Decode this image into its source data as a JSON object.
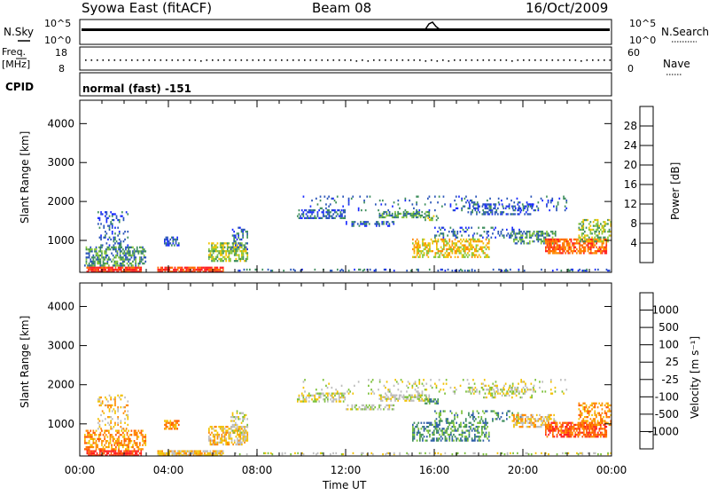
{
  "header": {
    "station": "Syowa East (fitACF)",
    "beam": "Beam 08",
    "date": "16/Oct/2009"
  },
  "noise_panel": {
    "left_label": "N.Sky",
    "right_label": "N.Search",
    "left_ticks": [
      "10^5",
      "10^0"
    ],
    "right_ticks": [
      "10^5",
      "10^0"
    ]
  },
  "freq_panel": {
    "left_label_1": "Freq.",
    "left_label_2": "[MHz]",
    "right_label": "Nave",
    "left_ticks": [
      "18",
      "8"
    ],
    "right_ticks": [
      "60",
      "0"
    ]
  },
  "cpid_panel": {
    "label": "CPID",
    "value": "normal (fast) -151"
  },
  "chart_data": [
    {
      "type": "heatmap",
      "name": "Power",
      "ylabel": "Slant Range [km]",
      "xlabel": "Time UT",
      "ylim": [
        180,
        4600
      ],
      "xlim_hours": [
        0,
        24
      ],
      "y_ticks": [
        "1000",
        "2000",
        "3000",
        "4000"
      ],
      "x_ticks": [
        "00:00",
        "04:00",
        "08:00",
        "12:00",
        "16:00",
        "20:00",
        "00:00"
      ],
      "colorbar_label": "Power [dB]",
      "colorbar_ticks": [
        "4",
        "8",
        "12",
        "16",
        "20",
        "24",
        "28"
      ],
      "colors": [
        "#1a2bff",
        "#2a55b8",
        "#3f8f5e",
        "#86c63a",
        "#f2c200",
        "#ff8a00",
        "#ff6a00",
        "#ff2020"
      ]
    },
    {
      "type": "heatmap",
      "name": "Velocity",
      "ylabel": "Slant Range [km]",
      "xlabel": "Time UT",
      "ylim": [
        180,
        4600
      ],
      "xlim_hours": [
        0,
        24
      ],
      "y_ticks": [
        "1000",
        "2000",
        "3000",
        "4000"
      ],
      "x_ticks": [
        "00:00",
        "04:00",
        "08:00",
        "12:00",
        "16:00",
        "20:00",
        "00:00"
      ],
      "colorbar_label": "Velocity [m s⁻¹]",
      "colorbar_ticks": [
        "1000",
        "500",
        "100",
        "25",
        "-25",
        "-100",
        "-500",
        "-1000"
      ],
      "colors": [
        "#2244cc",
        "#2f5fa8",
        "#3f8f5e",
        "#7cc13a",
        "#bdbdbd",
        "#f2c200",
        "#ff8a00",
        "#ff5a00",
        "#ff2020"
      ]
    }
  ],
  "x_axis_title": "Time UT"
}
